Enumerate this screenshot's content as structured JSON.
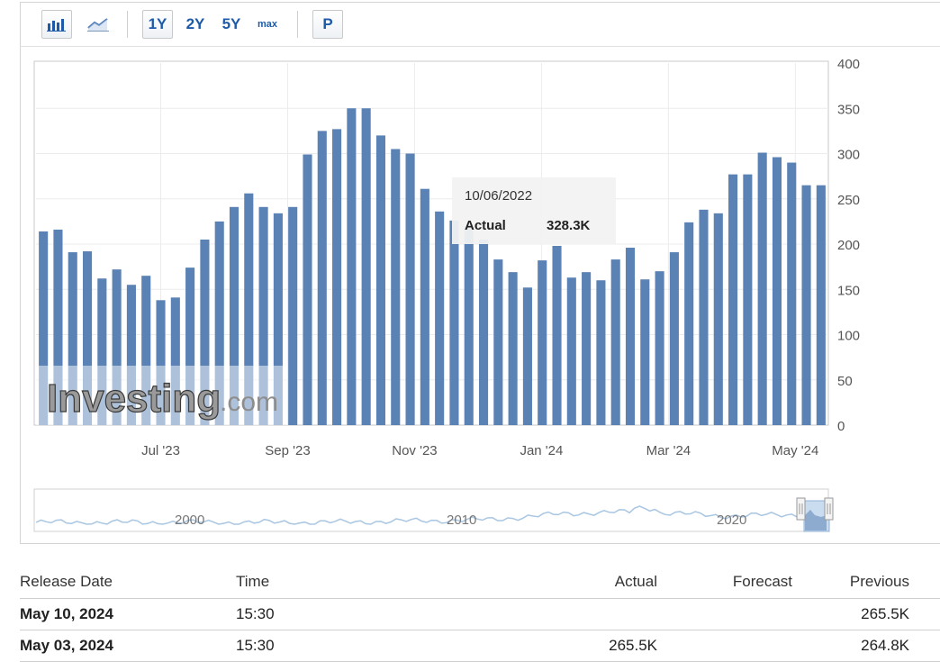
{
  "toolbar": {
    "bar_chart_icon": "bar-chart-icon",
    "line_chart_icon": "line-chart-icon",
    "range_1y": "1Y",
    "range_2y": "2Y",
    "range_5y": "5Y",
    "range_max": "max",
    "print_label": "P"
  },
  "colors": {
    "bar": "#5b82b4",
    "navigator_line": "#a9c6e2",
    "accent": "#1e5aa8",
    "tooltip_bg": "#f2f2f2"
  },
  "chart_data": {
    "type": "bar",
    "values": [
      214,
      216,
      191,
      192,
      162,
      172,
      155,
      165,
      138,
      141,
      174,
      205,
      225,
      241,
      256,
      241,
      234,
      241,
      299,
      325,
      327,
      350,
      350,
      320,
      305,
      300,
      261,
      236,
      226,
      219,
      205,
      183,
      169,
      152,
      182,
      198,
      163,
      169,
      160,
      183,
      196,
      161,
      170,
      191,
      224,
      238,
      234,
      277,
      277,
      301,
      296,
      290,
      265,
      265
    ],
    "x_tick_labels": [
      "Jul '23",
      "Sep '23",
      "Nov '23",
      "Jan '24",
      "Mar '24",
      "May '24"
    ],
    "y_ticks": [
      0,
      50,
      100,
      150,
      200,
      250,
      300,
      350,
      400
    ],
    "ylim": [
      0,
      400
    ],
    "grid": true,
    "watermark": {
      "brand": "Investing",
      "suffix": ".com"
    },
    "tooltip": {
      "date": "10/06/2022",
      "label": "Actual",
      "value": "328.3K"
    },
    "navigator": {
      "year_labels": [
        "2000",
        "2010",
        "2020"
      ]
    }
  },
  "table": {
    "headers": {
      "date": "Release Date",
      "time": "Time",
      "actual": "Actual",
      "forecast": "Forecast",
      "previous": "Previous"
    },
    "rows": [
      {
        "date": "May 10, 2024",
        "time": "15:30",
        "actual": "",
        "forecast": "",
        "previous": "265.5K"
      },
      {
        "date": "May 03, 2024",
        "time": "15:30",
        "actual": "265.5K",
        "forecast": "",
        "previous": "264.8K"
      }
    ]
  }
}
